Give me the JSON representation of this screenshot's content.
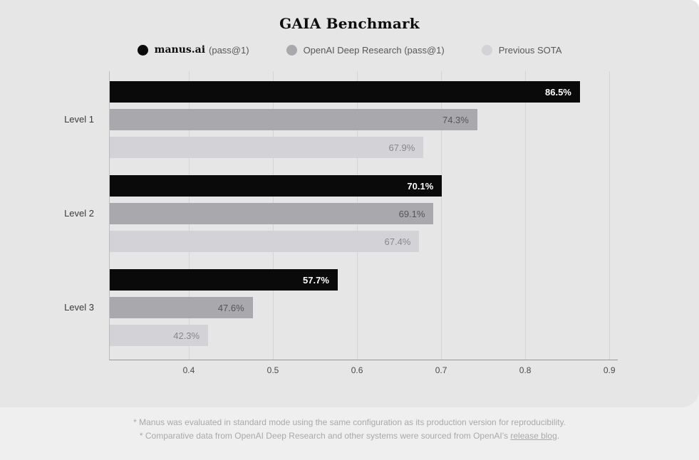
{
  "chart_data": {
    "type": "bar",
    "orientation": "horizontal",
    "title": "GAIA Benchmark",
    "categories": [
      "Level 1",
      "Level 2",
      "Level 3"
    ],
    "series": [
      {
        "name": "manus.ai (pass@1)",
        "values": [
          86.5,
          70.1,
          57.7
        ],
        "labels": [
          "86.5%",
          "70.1%",
          "57.7%"
        ],
        "color": "#0a0a0a",
        "label_color": "#ffffff",
        "label_bold": true
      },
      {
        "name": "OpenAI Deep Research (pass@1)",
        "values": [
          74.3,
          69.1,
          47.6
        ],
        "labels": [
          "74.3%",
          "69.1%",
          "47.6%"
        ],
        "color": "#a8a8ad",
        "label_color": "#55555a",
        "label_bold": false
      },
      {
        "name": "Previous SOTA",
        "values": [
          67.9,
          67.4,
          42.3
        ],
        "labels": [
          "67.9%",
          "67.4%",
          "42.3%"
        ],
        "color": "#d3d3d7",
        "label_color": "#87878c",
        "label_bold": false
      }
    ],
    "unit": "%",
    "xaxis": {
      "min": 0.306,
      "max": 0.91,
      "tick_values": [
        0.4,
        0.5,
        0.6,
        0.7,
        0.8,
        0.9
      ],
      "tick_labels": [
        "0.4",
        "0.5",
        "0.6",
        "0.7",
        "0.8",
        "0.9"
      ],
      "grid": true
    },
    "legend_position": "top"
  },
  "legend": {
    "entries": [
      {
        "label": "manus.ai",
        "detail": "(pass@1)",
        "color": "#0a0a0a",
        "emphasis": true
      },
      {
        "label": "OpenAI Deep Research (pass@1)",
        "detail": "",
        "color": "#a8a8ad",
        "emphasis": false
      },
      {
        "label": "Previous SOTA",
        "detail": "",
        "color": "#d3d3d7",
        "emphasis": false
      }
    ]
  },
  "footnotes": {
    "line1": "* Manus was evaluated in standard mode using the same configuration as its production version for reproducibility.",
    "line2_prefix": "* Comparative data from OpenAI Deep Research and other systems were sourced from OpenAI's ",
    "line2_link": "release blog",
    "line2_suffix": "."
  },
  "colors": {
    "card_bg": "#e6e6e6",
    "footer_bg": "#efefef",
    "grid": "#d5d5d5",
    "axis": "#979797"
  }
}
